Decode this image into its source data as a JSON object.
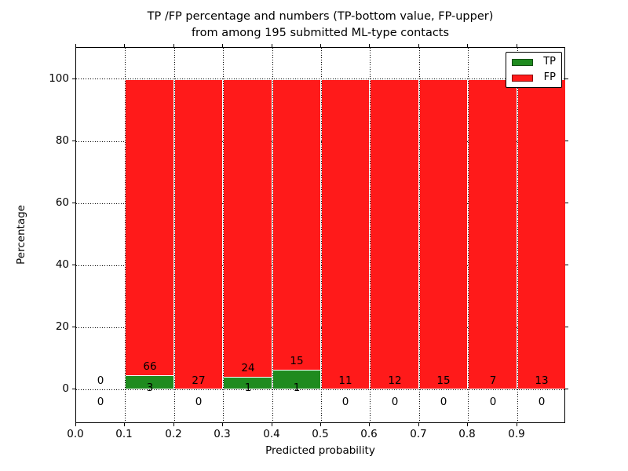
{
  "chart_data": {
    "type": "bar",
    "stacked": true,
    "title": "TP /FP percentage and numbers (TP-bottom value, FP-upper)\nfrom among 195 submitted ML-type contacts",
    "xlabel": "Predicted probability",
    "ylabel": "Percentage",
    "total_contacts": 195,
    "xlim": [
      0.0,
      1.0
    ],
    "ylim": [
      -11,
      110
    ],
    "xticks": [
      "0.0",
      "0.1",
      "0.2",
      "0.3",
      "0.4",
      "0.5",
      "0.6",
      "0.7",
      "0.8",
      "0.9"
    ],
    "yticks": [
      0,
      20,
      40,
      60,
      80,
      100
    ],
    "grid": "dotted, both axes, drawn below bars",
    "colors": {
      "tp": "#1f8b1f",
      "fp": "#ff1a1a"
    },
    "legend": {
      "position": "upper-right",
      "entries": [
        {
          "label": "TP",
          "key": "tp"
        },
        {
          "label": "FP",
          "key": "fp"
        }
      ]
    },
    "bins": [
      {
        "x0": 0.0,
        "x1": 0.1,
        "tp": 0,
        "fp": 0
      },
      {
        "x0": 0.1,
        "x1": 0.2,
        "tp": 3,
        "fp": 66
      },
      {
        "x0": 0.2,
        "x1": 0.3,
        "tp": 0,
        "fp": 27
      },
      {
        "x0": 0.3,
        "x1": 0.4,
        "tp": 1,
        "fp": 24
      },
      {
        "x0": 0.4,
        "x1": 0.5,
        "tp": 1,
        "fp": 15
      },
      {
        "x0": 0.5,
        "x1": 0.6,
        "tp": 0,
        "fp": 11
      },
      {
        "x0": 0.6,
        "x1": 0.7,
        "tp": 0,
        "fp": 12
      },
      {
        "x0": 0.7,
        "x1": 0.8,
        "tp": 0,
        "fp": 15
      },
      {
        "x0": 0.8,
        "x1": 0.9,
        "tp": 0,
        "fp": 7
      },
      {
        "x0": 0.9,
        "x1": 1.0,
        "tp": 0,
        "fp": 13
      }
    ]
  }
}
